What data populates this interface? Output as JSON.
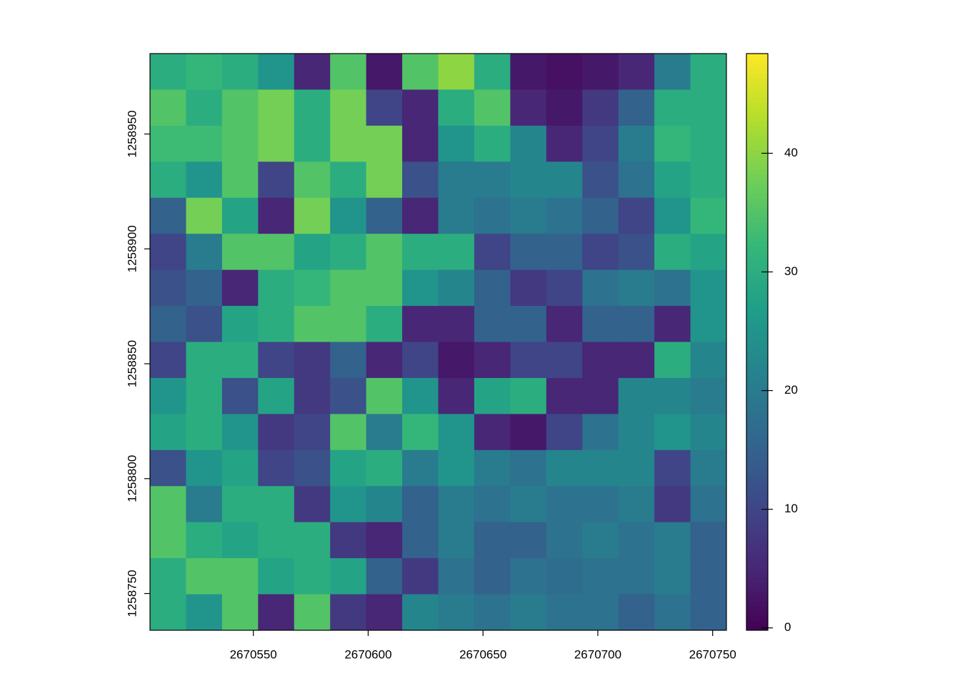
{
  "chart_data": {
    "type": "raster",
    "xlim": [
      2670505,
      2670756
    ],
    "ylim": [
      1258734,
      1258985
    ],
    "xticks": [
      2670550,
      2670600,
      2670650,
      2670700,
      2670750
    ],
    "yticks": [
      1258750,
      1258800,
      1258850,
      1258900,
      1258950
    ],
    "zlim": [
      -0.2,
      48.4
    ],
    "zticks": [
      0,
      10,
      20,
      30,
      40
    ],
    "colorscale": [
      "#440154",
      "#482878",
      "#3e4989",
      "#31688e",
      "#26828e",
      "#1f9e89",
      "#35b779",
      "#6ece58",
      "#b5de2b",
      "#fde725"
    ],
    "z": [
      [
        30,
        32,
        30,
        25,
        5,
        35,
        3,
        35,
        40,
        30,
        3,
        2,
        3,
        5,
        20,
        30
      ],
      [
        35,
        30,
        35,
        38,
        30,
        38,
        10,
        5,
        30,
        35,
        5,
        3,
        8,
        15,
        30,
        30
      ],
      [
        33,
        33,
        35,
        38,
        30,
        38,
        38,
        5,
        25,
        30,
        22,
        5,
        10,
        20,
        32,
        30
      ],
      [
        30,
        25,
        35,
        10,
        35,
        30,
        38,
        12,
        20,
        20,
        22,
        22,
        12,
        18,
        28,
        30
      ],
      [
        15,
        38,
        28,
        5,
        38,
        25,
        15,
        5,
        20,
        18,
        20,
        18,
        15,
        10,
        25,
        32
      ],
      [
        10,
        20,
        35,
        35,
        28,
        30,
        35,
        30,
        30,
        10,
        15,
        15,
        10,
        12,
        30,
        28
      ],
      [
        12,
        15,
        5,
        30,
        32,
        35,
        35,
        25,
        22,
        15,
        8,
        10,
        18,
        20,
        18,
        25
      ],
      [
        15,
        12,
        28,
        30,
        35,
        35,
        30,
        5,
        5,
        15,
        15,
        5,
        15,
        15,
        5,
        25
      ],
      [
        10,
        30,
        30,
        10,
        8,
        15,
        5,
        10,
        3,
        5,
        10,
        10,
        5,
        5,
        30,
        22
      ],
      [
        25,
        30,
        12,
        28,
        8,
        12,
        35,
        25,
        5,
        28,
        30,
        5,
        5,
        22,
        22,
        20
      ],
      [
        28,
        30,
        25,
        8,
        10,
        35,
        20,
        32,
        25,
        5,
        3,
        10,
        18,
        22,
        25,
        22
      ],
      [
        12,
        25,
        28,
        10,
        12,
        28,
        30,
        20,
        25,
        20,
        18,
        22,
        22,
        22,
        10,
        20
      ],
      [
        35,
        20,
        30,
        30,
        8,
        25,
        22,
        15,
        20,
        18,
        20,
        18,
        18,
        20,
        8,
        18
      ],
      [
        35,
        30,
        28,
        30,
        30,
        8,
        5,
        15,
        20,
        15,
        15,
        18,
        20,
        18,
        20,
        15
      ],
      [
        30,
        35,
        35,
        28,
        30,
        28,
        15,
        8,
        18,
        15,
        18,
        17,
        18,
        18,
        20,
        15
      ],
      [
        30,
        25,
        35,
        5,
        35,
        8,
        5,
        22,
        20,
        18,
        20,
        18,
        18,
        15,
        18,
        15
      ]
    ]
  }
}
